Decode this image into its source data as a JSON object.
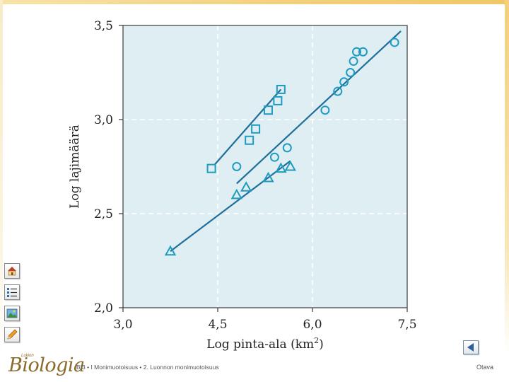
{
  "chart_data": {
    "type": "scatter",
    "xlabel": "Log pinta-ala (km",
    "xlabel_sup": "2",
    "xlabel_close": ")",
    "ylabel": "Log lajimäärä",
    "xlim": [
      3.0,
      7.5
    ],
    "ylim": [
      2.0,
      3.5
    ],
    "x_ticks": [
      {
        "v": 3.0,
        "label": "3,0"
      },
      {
        "v": 4.5,
        "label": "4,5"
      },
      {
        "v": 6.0,
        "label": "6,0"
      },
      {
        "v": 7.5,
        "label": "7,5"
      }
    ],
    "y_ticks": [
      {
        "v": 2.0,
        "label": "2,0"
      },
      {
        "v": 2.5,
        "label": "2,5"
      },
      {
        "v": 3.0,
        "label": "3,0"
      },
      {
        "v": 3.5,
        "label": "3,5"
      }
    ],
    "grid": true,
    "series": [
      {
        "name": "squares",
        "marker": "square",
        "points": [
          [
            4.4,
            2.74
          ],
          [
            5.0,
            2.89
          ],
          [
            5.1,
            2.95
          ],
          [
            5.3,
            3.05
          ],
          [
            5.45,
            3.1
          ],
          [
            5.5,
            3.16
          ]
        ],
        "trend": [
          [
            4.45,
            2.76
          ],
          [
            5.5,
            3.16
          ]
        ]
      },
      {
        "name": "circles",
        "marker": "circle",
        "points": [
          [
            4.8,
            2.75
          ],
          [
            5.4,
            2.8
          ],
          [
            5.6,
            2.85
          ],
          [
            6.2,
            3.05
          ],
          [
            6.4,
            3.15
          ],
          [
            6.5,
            3.2
          ],
          [
            6.6,
            3.25
          ],
          [
            6.65,
            3.31
          ],
          [
            6.7,
            3.36
          ],
          [
            6.8,
            3.36
          ],
          [
            7.3,
            3.41
          ]
        ],
        "trend": [
          [
            4.8,
            2.66
          ],
          [
            7.4,
            3.47
          ]
        ]
      },
      {
        "name": "triangles",
        "marker": "triangle",
        "points": [
          [
            3.75,
            2.3
          ],
          [
            4.8,
            2.6
          ],
          [
            4.95,
            2.64
          ],
          [
            5.3,
            2.69
          ],
          [
            5.5,
            2.74
          ],
          [
            5.65,
            2.75
          ]
        ],
        "trend": [
          [
            3.75,
            2.3
          ],
          [
            5.65,
            2.78
          ]
        ]
      }
    ],
    "colors": {
      "plot_bg": "#deeef2",
      "marker": "#1e9bc0",
      "line": "#1e6f9b",
      "axis": "#3a3a3a",
      "grid": "#ffffff",
      "text": "#222222"
    }
  },
  "sidebar": {
    "tools": [
      {
        "icon": "home-icon"
      },
      {
        "icon": "list-icon"
      },
      {
        "icon": "image-icon"
      },
      {
        "icon": "pencil-icon"
      }
    ]
  },
  "footer": {
    "brand_small": "Lukion",
    "brand_main": "Biologia",
    "path": "BI3 • I Monimuotoisuus • 2. Luonnon monimuotoisuus",
    "publisher": "Otava",
    "back_icon": "triangle-left-icon"
  }
}
